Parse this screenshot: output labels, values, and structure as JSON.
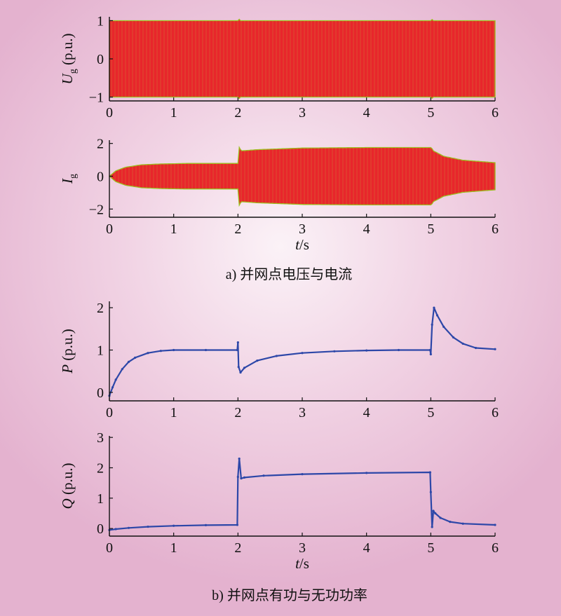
{
  "captions": {
    "a": "a) 并网点电压与电流",
    "b": "b) 并网点有功与无功功率"
  },
  "colors": {
    "oscillation_fill": "#e8262b",
    "oscillation_edge": "#9cbf1e",
    "power_line": "#2d47a8",
    "axis": "#111111"
  },
  "chart_data": [
    {
      "type": "line",
      "id": "ug",
      "ylabel": {
        "symbol": "U",
        "sub": "g",
        "unit": " (p.u.)"
      },
      "xlabel": "",
      "xlim": [
        0,
        6
      ],
      "ylim": [
        -1.1,
        1.1
      ],
      "xticks": [
        "0",
        "1",
        "2",
        "3",
        "4",
        "5",
        "6"
      ],
      "yticks": [
        "1",
        "0",
        "−1"
      ],
      "ytick_values": [
        1,
        0,
        -1
      ],
      "series": [
        {
          "kind": "oscillation-envelope",
          "envelope": {
            "x": [
              0,
              2,
              2.01,
              2.03,
              5,
              5.01,
              5.03,
              6
            ],
            "amplitude": [
              1,
              1,
              1.07,
              1,
              1,
              1.06,
              1,
              1
            ]
          }
        }
      ]
    },
    {
      "type": "line",
      "id": "ig",
      "ylabel": {
        "symbol": "I",
        "sub": "g",
        "unit": ""
      },
      "xlabel": "t/s",
      "xlim": [
        0,
        6
      ],
      "ylim": [
        -2.5,
        2.2
      ],
      "xticks": [
        "0",
        "1",
        "2",
        "3",
        "4",
        "5",
        "6"
      ],
      "yticks": [
        "2",
        "0",
        "−2"
      ],
      "ytick_values": [
        2,
        0,
        -2
      ],
      "series": [
        {
          "kind": "oscillation-envelope",
          "envelope": {
            "x": [
              0,
              0.1,
              0.25,
              0.5,
              0.8,
              1.2,
              2,
              2.001,
              2.05,
              2.3,
              3,
              4,
              5,
              5.001,
              5.04,
              5.2,
              5.5,
              6
            ],
            "amplitude": [
              0,
              0.33,
              0.55,
              0.7,
              0.75,
              0.78,
              0.78,
              1.9,
              1.55,
              1.62,
              1.72,
              1.75,
              1.75,
              1.8,
              1.55,
              1.22,
              0.98,
              0.83
            ]
          }
        }
      ]
    },
    {
      "type": "line",
      "id": "p",
      "ylabel": {
        "symbol": "P",
        "sub": "",
        "unit": " (p.u.)"
      },
      "xlabel": "",
      "xlim": [
        0,
        6
      ],
      "ylim": [
        -0.2,
        2.15
      ],
      "xticks": [
        "0",
        "1",
        "2",
        "3",
        "4",
        "5",
        "6"
      ],
      "yticks": [
        "2",
        "1",
        "0"
      ],
      "ytick_values": [
        2,
        1,
        0
      ],
      "series": [
        {
          "name": "P",
          "x": [
            0,
            0.05,
            0.1,
            0.2,
            0.3,
            0.4,
            0.6,
            0.8,
            1.0,
            1.5,
            1.99,
            2.0,
            2.01,
            2.04,
            2.1,
            2.3,
            2.6,
            3.0,
            3.5,
            4.0,
            4.5,
            4.99,
            5.0,
            5.02,
            5.05,
            5.1,
            5.2,
            5.35,
            5.5,
            5.7,
            6.0
          ],
          "y": [
            -0.08,
            0.12,
            0.3,
            0.55,
            0.72,
            0.82,
            0.93,
            0.98,
            1.0,
            1.0,
            1.0,
            1.18,
            0.6,
            0.47,
            0.58,
            0.75,
            0.86,
            0.93,
            0.97,
            0.99,
            1.0,
            1.0,
            0.9,
            1.6,
            2.0,
            1.82,
            1.55,
            1.3,
            1.15,
            1.05,
            1.02
          ]
        }
      ]
    },
    {
      "type": "line",
      "id": "q",
      "ylabel": {
        "symbol": "Q",
        "sub": "",
        "unit": " (p.u.)"
      },
      "xlabel": "t/s",
      "xlim": [
        0,
        6
      ],
      "ylim": [
        -0.25,
        3.05
      ],
      "xticks": [
        "0",
        "1",
        "2",
        "3",
        "4",
        "5",
        "6"
      ],
      "yticks": [
        "3",
        "2",
        "1",
        "0"
      ],
      "ytick_values": [
        3,
        2,
        1,
        0
      ],
      "series": [
        {
          "name": "Q",
          "x": [
            0,
            0.1,
            0.3,
            0.6,
            1.0,
            1.5,
            1.99,
            2.0,
            2.02,
            2.05,
            2.1,
            2.4,
            3.0,
            4.0,
            4.99,
            5.0,
            5.02,
            5.04,
            5.07,
            5.15,
            5.3,
            5.5,
            6.0
          ],
          "y": [
            -0.05,
            -0.02,
            0.02,
            0.06,
            0.09,
            0.11,
            0.12,
            1.7,
            2.3,
            1.65,
            1.68,
            1.74,
            1.79,
            1.83,
            1.85,
            1.2,
            0.05,
            0.58,
            0.5,
            0.35,
            0.22,
            0.16,
            0.12
          ]
        }
      ]
    }
  ]
}
